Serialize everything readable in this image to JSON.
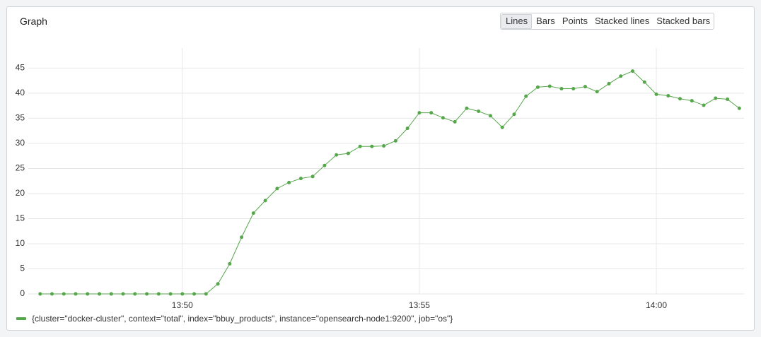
{
  "chart_data": {
    "type": "line",
    "title": "Graph",
    "x": [
      827,
      827.25,
      827.5,
      827.75,
      828,
      828.25,
      828.5,
      828.75,
      829,
      829.25,
      829.5,
      829.75,
      830,
      830.25,
      830.5,
      830.75,
      831,
      831.25,
      831.5,
      831.75,
      832,
      832.25,
      832.5,
      832.75,
      833,
      833.25,
      833.5,
      833.75,
      834,
      834.25,
      834.5,
      834.75,
      835,
      835.25,
      835.5,
      835.75,
      836,
      836.25,
      836.5,
      836.75,
      837,
      837.25,
      837.5,
      837.75,
      838,
      838.25,
      838.5,
      838.75,
      839,
      839.25,
      839.5,
      839.75,
      840,
      840.25,
      840.5,
      840.75,
      841,
      841.25,
      841.5,
      841.75
    ],
    "series": [
      {
        "name": "{cluster=\"docker-cluster\", context=\"total\", index=\"bbuy_products\", instance=\"opensearch-node1:9200\", job=\"os\"}",
        "color": "#56a64b",
        "values": [
          0,
          0,
          0,
          0,
          0,
          0,
          0,
          0,
          0,
          0,
          0,
          0,
          0,
          0,
          0,
          2,
          6,
          11.3,
          16.1,
          18.6,
          21,
          22.2,
          23,
          23.4,
          25.6,
          27.7,
          28,
          29.4,
          29.4,
          29.5,
          30.5,
          33,
          36.1,
          36.1,
          35.1,
          34.3,
          37,
          36.4,
          35.5,
          33.2,
          35.8,
          39.4,
          41.2,
          41.4,
          40.9,
          40.9,
          41.3,
          40.3,
          41.9,
          43.4,
          44.4,
          42.2,
          39.8,
          39.5,
          38.9,
          38.5,
          37.6,
          39,
          38.8,
          37
        ]
      }
    ],
    "xlim": [
      826.75,
      841.85
    ],
    "xticks": [
      {
        "value": 830,
        "label": "13:50"
      },
      {
        "value": 835,
        "label": "13:55"
      },
      {
        "value": 840,
        "label": "14:00"
      }
    ],
    "ylim": [
      0,
      49
    ],
    "yticks": [
      0,
      5,
      10,
      15,
      20,
      25,
      30,
      35,
      40,
      45
    ],
    "grid": true
  },
  "toolbar": {
    "buttons": [
      "Lines",
      "Bars",
      "Points",
      "Stacked lines",
      "Stacked bars"
    ]
  }
}
